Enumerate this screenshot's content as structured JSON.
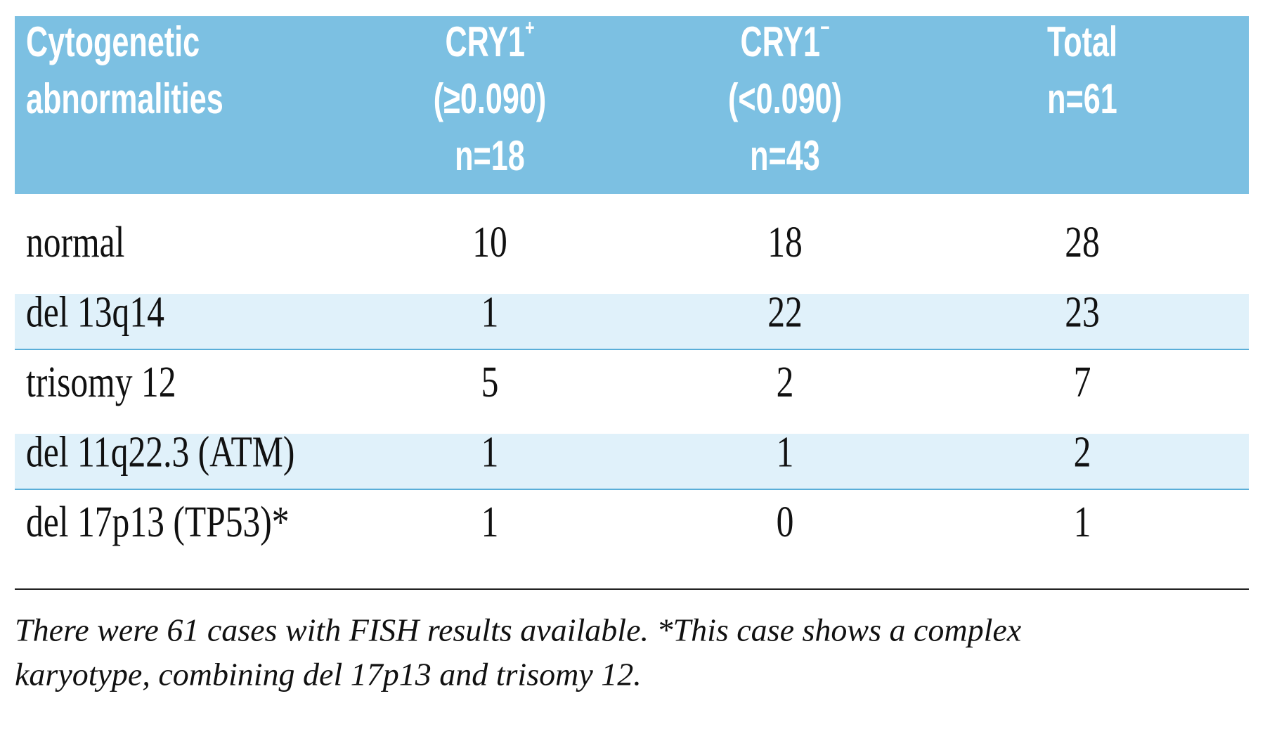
{
  "table": {
    "header": [
      {
        "lines": [
          "Cytogenetic",
          "abnormalities"
        ]
      },
      {
        "name": "CRY1",
        "sup": "+",
        "lines": [
          "(≥0.090)",
          "n=18"
        ]
      },
      {
        "name": "CRY1",
        "sup": "−",
        "lines": [
          "(<0.090)",
          "n=43"
        ]
      },
      {
        "lines": [
          "Total",
          "n=61"
        ]
      }
    ],
    "rows": [
      [
        "normal",
        10,
        18,
        28
      ],
      [
        "del 13q14",
        1,
        22,
        23
      ],
      [
        "trisomy 12",
        5,
        2,
        7
      ],
      [
        "del 11q22.3 (ATM)",
        1,
        1,
        2
      ],
      [
        "del 17p13 (TP53)*",
        1,
        0,
        1
      ]
    ]
  },
  "footnote": [
    "There were 61 cases with FISH results available. *This case shows a complex",
    "karyotype, combining del 17p13 and trisomy 12."
  ]
}
